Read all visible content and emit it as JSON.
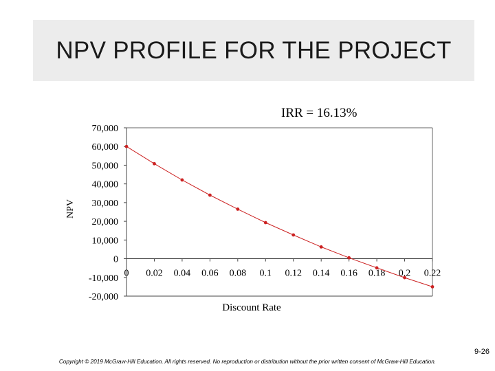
{
  "slide": {
    "title": "NPV PROFILE FOR THE PROJECT",
    "slide_number": "9-26",
    "copyright": "Copyright © 2019 McGraw-Hill Education. All rights reserved. No reproduction or distribution without the prior written consent of McGraw-Hill Education."
  },
  "chart_data": {
    "type": "line",
    "title": "",
    "annotation": "IRR = 16.13%",
    "xlabel": "Discount Rate",
    "ylabel": "NPV",
    "x_tick_labels": [
      "0",
      "0.02",
      "0.04",
      "0.06",
      "0.08",
      "0.1",
      "0.12",
      "0.14",
      "0.16",
      "0.18",
      "0.2",
      "0.22"
    ],
    "y_tick_labels": [
      "70,000",
      "60,000",
      "50,000",
      "40,000",
      "30,000",
      "20,000",
      "10,000",
      "0",
      "-10,000",
      "-20,000"
    ],
    "xlim": [
      0,
      0.22
    ],
    "ylim": [
      -20000,
      70000
    ],
    "grid": false,
    "series": [
      {
        "name": "NPV",
        "color": "#cc2222",
        "x": [
          0,
          0.02,
          0.04,
          0.06,
          0.08,
          0.1,
          0.12,
          0.14,
          0.16,
          0.18,
          0.2,
          0.22
        ],
        "y": [
          60000,
          50800,
          42100,
          34000,
          26500,
          19300,
          12700,
          6300,
          500,
          -4900,
          -10100,
          -15000
        ]
      }
    ]
  }
}
